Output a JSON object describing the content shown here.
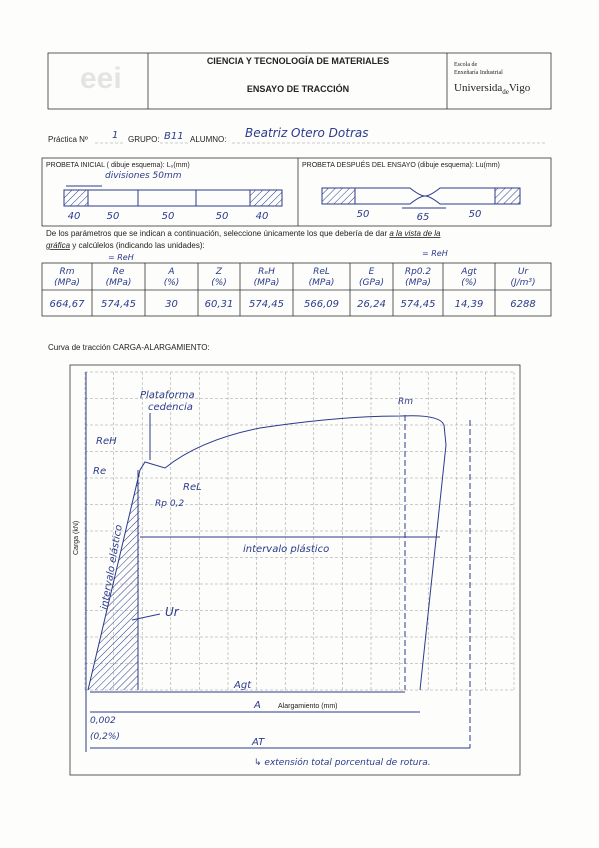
{
  "header": {
    "title": "CIENCIA Y TECNOLOGÍA DE MATERIALES",
    "subtitle": "ENSAYO DE TRACCIÓN",
    "school": [
      "Escola de",
      "Enxeñaría Industrial"
    ],
    "university": [
      "Universida",
      "de",
      "Vigo"
    ]
  },
  "student": {
    "practice_label": "Práctica Nº",
    "practice": "1",
    "group_label": "GRUPO:",
    "group": "B11",
    "name_label": "ALUMNO:",
    "name": "Beatriz Otero Dotras"
  },
  "specimen_initial": {
    "label": "PROBETA  INICIAL ( dibuje esquema): L₀(mm)",
    "note": "divisiones 50mm",
    "lengths": [
      "40",
      "50",
      "50",
      "50",
      "40"
    ]
  },
  "specimen_final": {
    "label": "PROBETA DESPUÉS DEL ENSAYO (dibuje esquema): Lu(mm)",
    "lengths": [
      "50",
      "65",
      "50"
    ]
  },
  "instructions": {
    "line1": "De los parámetros que se indican a continuación, seleccione únicamente los que debería de dar ",
    "emphasis1": "a la vista de la",
    "emphasis2": "gráfica",
    "line2": " y calcúlelos (indicando las unidades):",
    "notes": [
      "= ReH",
      "= ReH"
    ]
  },
  "table": {
    "headers": [
      [
        "Rm",
        "(MPa)"
      ],
      [
        "Re",
        "(MPa)"
      ],
      [
        "A",
        "(%)"
      ],
      [
        "Z",
        "(%)"
      ],
      [
        "RₑH",
        "(MPa)"
      ],
      [
        "ReL",
        "(MPa)"
      ],
      [
        "E",
        "(GPa)"
      ],
      [
        "Rp0.2",
        "(MPa)"
      ],
      [
        "Agt",
        "(%)"
      ],
      [
        "Ur",
        "(J/m³)"
      ]
    ],
    "values": [
      "664,67",
      "574,45",
      "30",
      "60,31",
      "574,45",
      "566,09",
      "26,24",
      "574,45",
      "14,39",
      "6288"
    ]
  },
  "graph": {
    "caption": "Curva de tracción CARGA-ALARGAMIENTO:",
    "y_label": "Carga (kN)",
    "x_label": "Alargamiento (mm)",
    "annotations": {
      "platform": [
        "Plataforma",
        "cedencia"
      ],
      "reh": "ReH",
      "re": "Re",
      "rel": "ReL",
      "rp": "Rp 0,2",
      "rm": "Rm",
      "elastic": "intervalo elástico",
      "plastic": "intervalo plástico",
      "ur": "Ur",
      "agt": "Agt",
      "a": "A",
      "strain": "0,002",
      "strain_pct": "(0,2%)",
      "at": "AT",
      "at_note": "↳ extensión total porcentual de rotura."
    }
  }
}
